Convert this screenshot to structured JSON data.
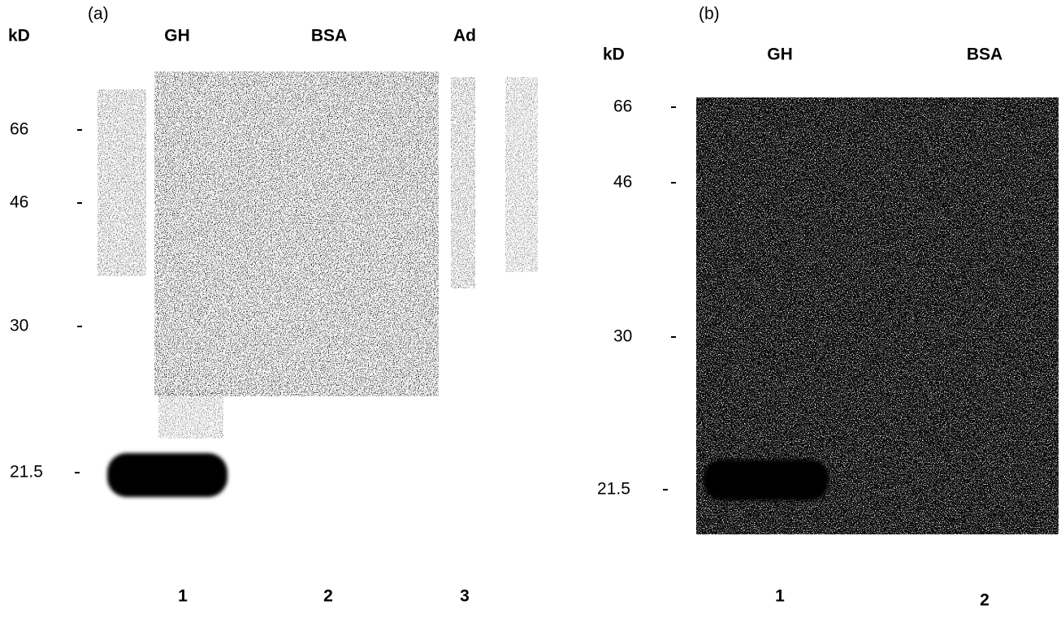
{
  "panels": [
    {
      "label": "(a)",
      "unit": "kD",
      "markers": [
        "66",
        "46",
        "30",
        "21.5"
      ],
      "lanes": [
        {
          "name": "GH",
          "number": "1"
        },
        {
          "name": "BSA",
          "number": "2"
        },
        {
          "name": "Ad",
          "number": "3"
        }
      ]
    },
    {
      "label": "(b)",
      "unit": "kD",
      "markers": [
        "66",
        "46",
        "30",
        "21.5"
      ],
      "lanes": [
        {
          "name": "GH",
          "number": "1"
        },
        {
          "name": "BSA",
          "number": "2"
        }
      ]
    }
  ]
}
